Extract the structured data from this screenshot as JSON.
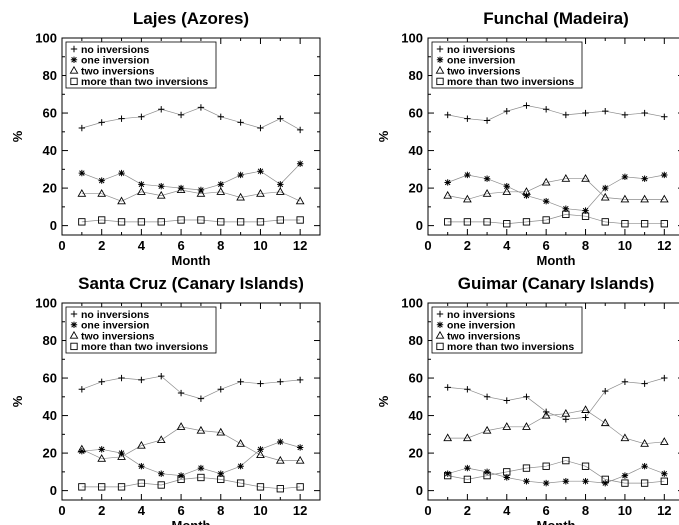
{
  "legend": {
    "entries": [
      "no inversions",
      "one inversion",
      "two inversions",
      "more than two inversions"
    ],
    "markers": [
      "plus",
      "star",
      "triangle",
      "square"
    ],
    "placement": "top-left"
  },
  "chart_data": [
    {
      "type": "line",
      "title": "Lajes (Azores)",
      "xlabel": "Month",
      "ylabel": "%",
      "xlim": [
        0,
        13
      ],
      "ylim": [
        -5,
        100
      ],
      "xticks": [
        0,
        2,
        4,
        6,
        8,
        10,
        12
      ],
      "yticks": [
        0,
        20,
        40,
        60,
        80,
        100
      ],
      "x": [
        1,
        2,
        3,
        4,
        5,
        6,
        7,
        8,
        9,
        10,
        11,
        12
      ],
      "series": [
        {
          "name": "no inversions",
          "values": [
            52,
            55,
            57,
            58,
            62,
            59,
            63,
            58,
            55,
            52,
            57,
            51
          ]
        },
        {
          "name": "one inversion",
          "values": [
            28,
            24,
            28,
            22,
            21,
            20,
            19,
            22,
            27,
            29,
            22,
            33
          ]
        },
        {
          "name": "two inversions",
          "values": [
            17,
            17,
            13,
            18,
            16,
            19,
            17,
            18,
            15,
            17,
            18,
            13
          ]
        },
        {
          "name": "more than two inversions",
          "values": [
            2,
            3,
            2,
            2,
            2,
            3,
            3,
            2,
            2,
            2,
            3,
            3
          ]
        }
      ]
    },
    {
      "type": "line",
      "title": "Funchal (Madeira)",
      "xlabel": "Month",
      "ylabel": "%",
      "xlim": [
        0,
        13
      ],
      "ylim": [
        -5,
        100
      ],
      "xticks": [
        0,
        2,
        4,
        6,
        8,
        10,
        12
      ],
      "yticks": [
        0,
        20,
        40,
        60,
        80,
        100
      ],
      "x": [
        1,
        2,
        3,
        4,
        5,
        6,
        7,
        8,
        9,
        10,
        11,
        12
      ],
      "series": [
        {
          "name": "no inversions",
          "values": [
            59,
            57,
            56,
            61,
            64,
            62,
            59,
            60,
            61,
            59,
            60,
            58
          ]
        },
        {
          "name": "one inversion",
          "values": [
            23,
            27,
            25,
            21,
            16,
            13,
            9,
            8,
            20,
            26,
            25,
            27
          ]
        },
        {
          "name": "two inversions",
          "values": [
            16,
            14,
            17,
            18,
            18,
            23,
            25,
            25,
            15,
            14,
            14,
            14
          ]
        },
        {
          "name": "more than two inversions",
          "values": [
            2,
            2,
            2,
            1,
            2,
            3,
            6,
            5,
            2,
            1,
            1,
            1
          ]
        }
      ]
    },
    {
      "type": "line",
      "title": "Santa Cruz (Canary Islands)",
      "xlabel": "Month",
      "ylabel": "%",
      "xlim": [
        0,
        13
      ],
      "ylim": [
        -5,
        100
      ],
      "xticks": [
        0,
        2,
        4,
        6,
        8,
        10,
        12
      ],
      "yticks": [
        0,
        20,
        40,
        60,
        80,
        100
      ],
      "x": [
        1,
        2,
        3,
        4,
        5,
        6,
        7,
        8,
        9,
        10,
        11,
        12
      ],
      "series": [
        {
          "name": "no inversions",
          "values": [
            54,
            58,
            60,
            59,
            61,
            52,
            49,
            54,
            58,
            57,
            58,
            59
          ]
        },
        {
          "name": "one inversion",
          "values": [
            21,
            22,
            20,
            13,
            9,
            8,
            12,
            9,
            13,
            22,
            26,
            23
          ]
        },
        {
          "name": "two inversions",
          "values": [
            22,
            17,
            18,
            24,
            27,
            34,
            32,
            31,
            25,
            19,
            16,
            16
          ]
        },
        {
          "name": "more than two inversions",
          "values": [
            2,
            2,
            2,
            4,
            3,
            6,
            7,
            6,
            4,
            2,
            1,
            2
          ]
        }
      ]
    },
    {
      "type": "line",
      "title": "Guimar (Canary Islands)",
      "xlabel": "Month",
      "ylabel": "%",
      "xlim": [
        0,
        13
      ],
      "ylim": [
        -5,
        100
      ],
      "xticks": [
        0,
        2,
        4,
        6,
        8,
        10,
        12
      ],
      "yticks": [
        0,
        20,
        40,
        60,
        80,
        100
      ],
      "x": [
        1,
        2,
        3,
        4,
        5,
        6,
        7,
        8,
        9,
        10,
        11,
        12
      ],
      "series": [
        {
          "name": "no inversions",
          "values": [
            55,
            54,
            50,
            48,
            50,
            42,
            38,
            39,
            53,
            58,
            57,
            60
          ]
        },
        {
          "name": "one inversion",
          "values": [
            9,
            12,
            10,
            7,
            5,
            4,
            5,
            5,
            4,
            8,
            13,
            9
          ]
        },
        {
          "name": "two inversions",
          "values": [
            28,
            28,
            32,
            34,
            34,
            40,
            41,
            43,
            36,
            28,
            25,
            26
          ]
        },
        {
          "name": "more than two inversions",
          "values": [
            8,
            6,
            8,
            10,
            12,
            13,
            16,
            13,
            6,
            4,
            4,
            5
          ]
        }
      ]
    }
  ]
}
